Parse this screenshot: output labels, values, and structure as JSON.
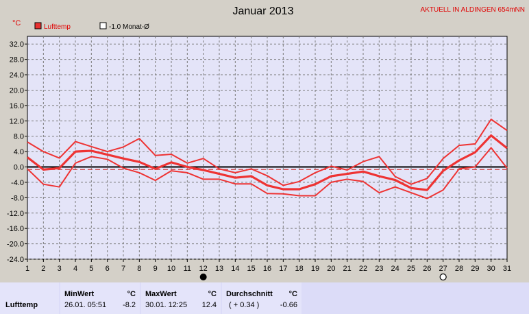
{
  "chart_data": {
    "type": "line",
    "title": "Januar 2013",
    "station": "AKTUELL IN ALDINGEN 654mNN",
    "ylabel": "°C",
    "ylim": [
      -24,
      34
    ],
    "yticks": [
      "32.0",
      "28.0",
      "24.0",
      "20.0",
      "16.0",
      "12.0",
      "8.0",
      "4.0",
      "0.0",
      "-4.0",
      "-8.0",
      "-12.0",
      "-16.0",
      "-20.0",
      "-24.0"
    ],
    "yticks_values": [
      32,
      28,
      24,
      20,
      16,
      12,
      8,
      4,
      0,
      -4,
      -8,
      -12,
      -16,
      -20,
      -24
    ],
    "x": [
      1,
      2,
      3,
      4,
      5,
      6,
      7,
      8,
      9,
      10,
      11,
      12,
      13,
      14,
      15,
      16,
      17,
      18,
      19,
      20,
      21,
      22,
      23,
      24,
      25,
      26,
      27,
      28,
      29,
      30,
      31
    ],
    "xticks": [
      "1",
      "2",
      "3",
      "4",
      "5",
      "6",
      "7",
      "8",
      "9",
      "10",
      "11",
      "12",
      "13",
      "14",
      "15",
      "16",
      "17",
      "18",
      "19",
      "20",
      "21",
      "22",
      "23",
      "24",
      "25",
      "26",
      "27",
      "28",
      "29",
      "30",
      "31"
    ],
    "legend": [
      {
        "name": "Lufttemp",
        "color": "#e83030",
        "filled": true
      },
      {
        "name": "-1.0 Monat-Ø",
        "color": "#404040",
        "filled": false
      }
    ],
    "series": [
      {
        "name": "max",
        "values": [
          6.5,
          4.0,
          2.3,
          6.6,
          5.3,
          4.0,
          5.2,
          7.4,
          3.0,
          3.3,
          1.0,
          2.2,
          -0.5,
          -1.5,
          -0.5,
          -2.3,
          -4.8,
          -3.8,
          -1.5,
          0.2,
          -0.8,
          1.4,
          2.7,
          -2.5,
          -4.5,
          -3.0,
          2.2,
          5.6,
          6.0,
          12.4,
          9.5
        ]
      },
      {
        "name": "mean",
        "values": [
          2.5,
          -0.7,
          -0.3,
          4.0,
          4.2,
          3.2,
          2.2,
          1.3,
          -0.5,
          1.2,
          0.0,
          -0.8,
          -1.8,
          -2.8,
          -2.4,
          -4.8,
          -5.8,
          -5.8,
          -4.5,
          -2.4,
          -1.8,
          -1.2,
          -2.4,
          -3.4,
          -5.5,
          -6.0,
          -1.0,
          1.7,
          3.8,
          8.2,
          4.9
        ]
      },
      {
        "name": "min",
        "values": [
          -0.5,
          -4.5,
          -5.2,
          1.0,
          2.7,
          2.0,
          -0.3,
          -1.5,
          -3.5,
          -1.0,
          -1.5,
          -3.2,
          -3.2,
          -4.4,
          -4.4,
          -6.9,
          -7.0,
          -7.5,
          -7.5,
          -4.0,
          -3.2,
          -3.8,
          -6.7,
          -5.2,
          -6.7,
          -8.2,
          -6.0,
          -0.5,
          0.0,
          5.0,
          -0.3
        ]
      }
    ],
    "monthly_mean": -0.66,
    "markers": [
      {
        "day": 12,
        "symbol": "new-moon"
      },
      {
        "day": 27,
        "symbol": "full-moon"
      }
    ],
    "grid": true
  },
  "summary": {
    "row_label": "Lufttemp",
    "min_header": "MinWert",
    "max_header": "MaxWert",
    "avg_header": "Durchschnitt",
    "unit": "°C",
    "min_datetime": "26.01.  05:51",
    "min_value": "-8.2",
    "max_datetime": "30.01.  12:25",
    "max_value": "12.4",
    "avg_diff": "( + 0.34 )",
    "avg_value": "-0.66"
  }
}
